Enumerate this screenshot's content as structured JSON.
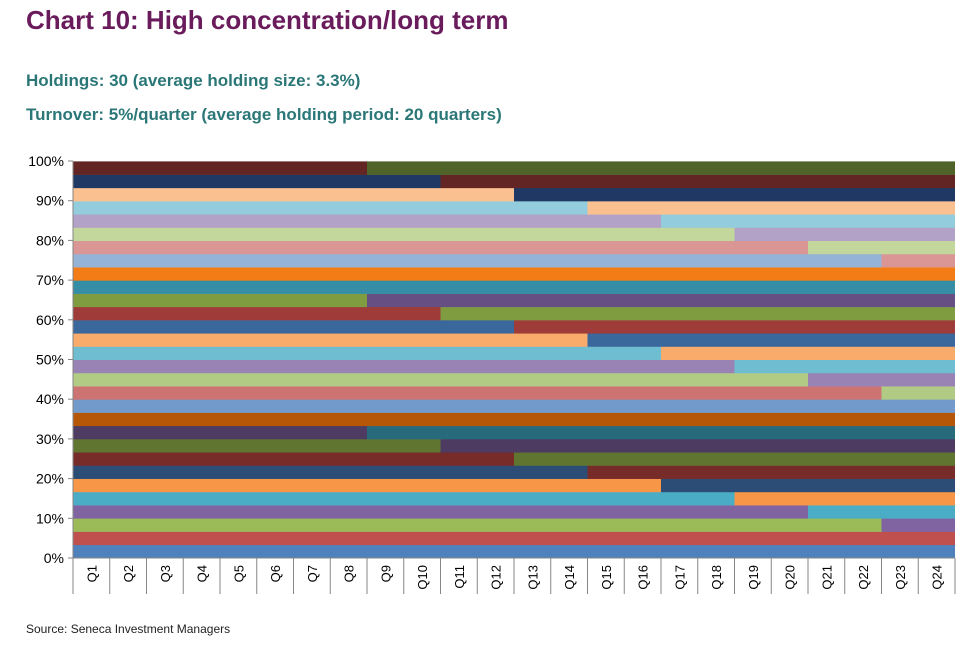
{
  "title": "Chart 10: High concentration/long term",
  "subtitle1": "Holdings: 30 (average holding size: 3.3%)",
  "subtitle2": "Turnover: 5%/quarter (average holding period: 20 quarters)",
  "source": "Source: Seneca Investment Managers",
  "chart_data": {
    "type": "bar",
    "stacked": true,
    "orientation": "vertical",
    "categories": [
      "Q1",
      "Q2",
      "Q3",
      "Q4",
      "Q5",
      "Q6",
      "Q7",
      "Q8",
      "Q9",
      "Q10",
      "Q11",
      "Q12",
      "Q13",
      "Q14",
      "Q15",
      "Q16",
      "Q17",
      "Q18",
      "Q19",
      "Q20",
      "Q21",
      "Q22",
      "Q23",
      "Q24"
    ],
    "ylim": [
      0,
      100
    ],
    "y_ticks": [
      "0%",
      "10%",
      "20%",
      "30%",
      "40%",
      "50%",
      "60%",
      "70%",
      "80%",
      "90%",
      "100%"
    ],
    "holdings": 30,
    "holding_weight_pct": 3.33,
    "palette": [
      "#4f81bd",
      "#c0504d",
      "#9bbb59",
      "#8064a2",
      "#4bacc6",
      "#f79646",
      "#2c4d75",
      "#772c2a",
      "#5f7530",
      "#4d3b62",
      "#276a7c",
      "#b65708",
      "#729aca",
      "#cd7371",
      "#b1cb85",
      "#9983b5",
      "#6fbdd1",
      "#f9ab6b",
      "#3a679c",
      "#9f3b38",
      "#7f9c40",
      "#664f83",
      "#358ea6",
      "#f37c16",
      "#95b3d7",
      "#d99694",
      "#c3d69b",
      "#b3a2c7",
      "#93cddd",
      "#fac090",
      "#1f3864",
      "#632523",
      "#4f6228",
      "#403151",
      "#215968",
      "#984807",
      "#17375e",
      "#4a1e1d",
      "#2e3a14",
      "#25192f",
      "#13343e",
      "#5b2c04"
    ],
    "positions": [
      {
        "slot": 1,
        "series": [
          {
            "from": "Q1",
            "to": "Q24",
            "color": 0
          }
        ]
      },
      {
        "slot": 2,
        "series": [
          {
            "from": "Q1",
            "to": "Q24",
            "color": 1
          }
        ]
      },
      {
        "slot": 3,
        "series": [
          {
            "from": "Q1",
            "to": "Q22",
            "color": 2
          },
          {
            "from": "Q23",
            "to": "Q24",
            "color": 3
          }
        ]
      },
      {
        "slot": 4,
        "series": [
          {
            "from": "Q1",
            "to": "Q20",
            "color": 3
          },
          {
            "from": "Q21",
            "to": "Q24",
            "color": 4
          }
        ]
      },
      {
        "slot": 5,
        "series": [
          {
            "from": "Q1",
            "to": "Q18",
            "color": 4
          },
          {
            "from": "Q19",
            "to": "Q24",
            "color": 5
          }
        ]
      },
      {
        "slot": 6,
        "series": [
          {
            "from": "Q1",
            "to": "Q16",
            "color": 5
          },
          {
            "from": "Q17",
            "to": "Q24",
            "color": 6
          }
        ]
      },
      {
        "slot": 7,
        "series": [
          {
            "from": "Q1",
            "to": "Q14",
            "color": 6
          },
          {
            "from": "Q15",
            "to": "Q24",
            "color": 7
          }
        ]
      },
      {
        "slot": 8,
        "series": [
          {
            "from": "Q1",
            "to": "Q12",
            "color": 7
          },
          {
            "from": "Q13",
            "to": "Q24",
            "color": 8
          }
        ]
      },
      {
        "slot": 9,
        "series": [
          {
            "from": "Q1",
            "to": "Q10",
            "color": 8
          },
          {
            "from": "Q11",
            "to": "Q24",
            "color": 9
          }
        ]
      },
      {
        "slot": 10,
        "series": [
          {
            "from": "Q1",
            "to": "Q8",
            "color": 9
          },
          {
            "from": "Q9",
            "to": "Q24",
            "color": 10
          }
        ]
      },
      {
        "slot": 11,
        "series": [
          {
            "from": "Q1",
            "to": "Q24",
            "color": 11
          }
        ]
      },
      {
        "slot": 12,
        "series": [
          {
            "from": "Q1",
            "to": "Q24",
            "color": 12
          }
        ]
      },
      {
        "slot": 13,
        "series": [
          {
            "from": "Q1",
            "to": "Q22",
            "color": 13
          },
          {
            "from": "Q23",
            "to": "Q24",
            "color": 14
          }
        ]
      },
      {
        "slot": 14,
        "series": [
          {
            "from": "Q1",
            "to": "Q20",
            "color": 14
          },
          {
            "from": "Q21",
            "to": "Q24",
            "color": 15
          }
        ]
      },
      {
        "slot": 15,
        "series": [
          {
            "from": "Q1",
            "to": "Q18",
            "color": 15
          },
          {
            "from": "Q19",
            "to": "Q24",
            "color": 16
          }
        ]
      },
      {
        "slot": 16,
        "series": [
          {
            "from": "Q1",
            "to": "Q16",
            "color": 16
          },
          {
            "from": "Q17",
            "to": "Q24",
            "color": 17
          }
        ]
      },
      {
        "slot": 17,
        "series": [
          {
            "from": "Q1",
            "to": "Q14",
            "color": 17
          },
          {
            "from": "Q15",
            "to": "Q24",
            "color": 18
          }
        ]
      },
      {
        "slot": 18,
        "series": [
          {
            "from": "Q1",
            "to": "Q12",
            "color": 18
          },
          {
            "from": "Q13",
            "to": "Q24",
            "color": 19
          }
        ]
      },
      {
        "slot": 19,
        "series": [
          {
            "from": "Q1",
            "to": "Q10",
            "color": 19
          },
          {
            "from": "Q11",
            "to": "Q24",
            "color": 20
          }
        ]
      },
      {
        "slot": 20,
        "series": [
          {
            "from": "Q1",
            "to": "Q8",
            "color": 20
          },
          {
            "from": "Q9",
            "to": "Q24",
            "color": 21
          }
        ]
      },
      {
        "slot": 21,
        "series": [
          {
            "from": "Q1",
            "to": "Q24",
            "color": 22
          }
        ]
      },
      {
        "slot": 22,
        "series": [
          {
            "from": "Q1",
            "to": "Q24",
            "color": 23
          }
        ]
      },
      {
        "slot": 23,
        "series": [
          {
            "from": "Q1",
            "to": "Q22",
            "color": 24
          },
          {
            "from": "Q23",
            "to": "Q24",
            "color": 25
          }
        ]
      },
      {
        "slot": 24,
        "series": [
          {
            "from": "Q1",
            "to": "Q20",
            "color": 25
          },
          {
            "from": "Q21",
            "to": "Q24",
            "color": 26
          }
        ]
      },
      {
        "slot": 25,
        "series": [
          {
            "from": "Q1",
            "to": "Q18",
            "color": 26
          },
          {
            "from": "Q19",
            "to": "Q24",
            "color": 27
          }
        ]
      },
      {
        "slot": 26,
        "series": [
          {
            "from": "Q1",
            "to": "Q16",
            "color": 27
          },
          {
            "from": "Q17",
            "to": "Q24",
            "color": 28
          }
        ]
      },
      {
        "slot": 27,
        "series": [
          {
            "from": "Q1",
            "to": "Q14",
            "color": 28
          },
          {
            "from": "Q15",
            "to": "Q24",
            "color": 29
          }
        ]
      },
      {
        "slot": 28,
        "series": [
          {
            "from": "Q1",
            "to": "Q12",
            "color": 29
          },
          {
            "from": "Q13",
            "to": "Q24",
            "color": 30
          }
        ]
      },
      {
        "slot": 29,
        "series": [
          {
            "from": "Q1",
            "to": "Q10",
            "color": 30
          },
          {
            "from": "Q11",
            "to": "Q24",
            "color": 31
          }
        ]
      },
      {
        "slot": 30,
        "series": [
          {
            "from": "Q1",
            "to": "Q8",
            "color": 31
          },
          {
            "from": "Q9",
            "to": "Q24",
            "color": 32
          }
        ]
      }
    ],
    "grid": false,
    "legend": "none"
  }
}
